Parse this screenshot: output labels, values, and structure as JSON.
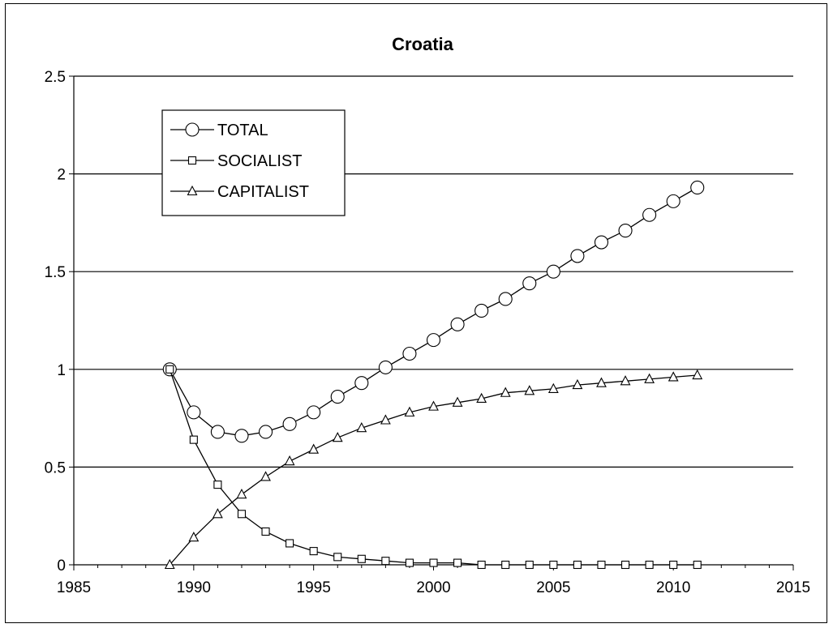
{
  "chart_data": {
    "type": "line",
    "title": "Croatia",
    "xlabel": "",
    "ylabel": "",
    "xlim": [
      1985,
      2015
    ],
    "ylim": [
      0,
      2.5
    ],
    "x_ticks": [
      "1985",
      "1990",
      "1995",
      "2000",
      "2005",
      "2010",
      "2015"
    ],
    "y_ticks": [
      "0",
      "0.5",
      "1",
      "1.5",
      "2",
      "2.5"
    ],
    "grid": "horizontal",
    "legend_position": "top-left",
    "x": [
      1989,
      1990,
      1991,
      1992,
      1993,
      1994,
      1995,
      1996,
      1997,
      1998,
      1999,
      2000,
      2001,
      2002,
      2003,
      2004,
      2005,
      2006,
      2007,
      2008,
      2009,
      2010,
      2011
    ],
    "series": [
      {
        "name": "TOTAL",
        "marker": "circle",
        "values": [
          1.0,
          0.78,
          0.68,
          0.66,
          0.68,
          0.72,
          0.78,
          0.86,
          0.93,
          1.01,
          1.08,
          1.15,
          1.23,
          1.3,
          1.36,
          1.44,
          1.5,
          1.58,
          1.65,
          1.71,
          1.79,
          1.86,
          1.93
        ]
      },
      {
        "name": "SOCIALIST",
        "marker": "square",
        "values": [
          1.0,
          0.64,
          0.41,
          0.26,
          0.17,
          0.11,
          0.07,
          0.04,
          0.03,
          0.02,
          0.01,
          0.01,
          0.01,
          0.0,
          0.0,
          0.0,
          0.0,
          0.0,
          0.0,
          0.0,
          0.0,
          0.0,
          0.0
        ]
      },
      {
        "name": "CAPITALIST",
        "marker": "triangle",
        "values": [
          0.0,
          0.14,
          0.26,
          0.36,
          0.45,
          0.53,
          0.59,
          0.65,
          0.7,
          0.74,
          0.78,
          0.81,
          0.83,
          0.85,
          0.88,
          0.89,
          0.9,
          0.92,
          0.93,
          0.94,
          0.95,
          0.96,
          0.97
        ]
      }
    ]
  }
}
